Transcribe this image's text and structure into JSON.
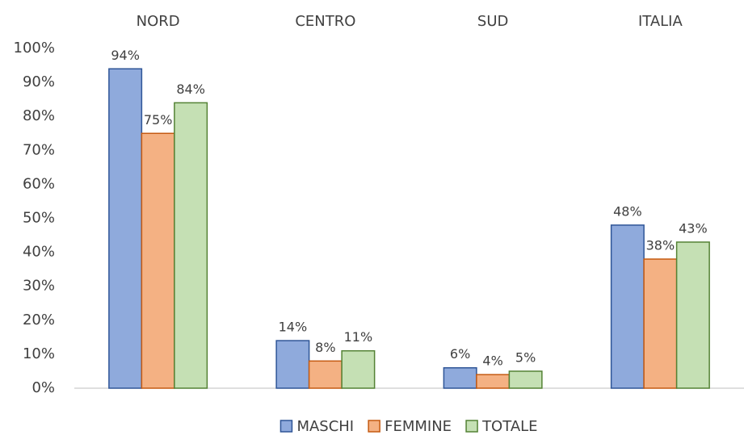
{
  "chart_data": {
    "type": "bar",
    "categories": [
      "NORD",
      "CENTRO",
      "SUD",
      "ITALIA"
    ],
    "series": [
      {
        "name": "MASCHI",
        "color": "#8faadc",
        "edge": "#2f5597",
        "values": [
          94,
          14,
          6,
          48
        ],
        "value_labels": [
          "94%",
          "14%",
          "6%",
          "48%"
        ]
      },
      {
        "name": "FEMMINE",
        "color": "#f4b183",
        "edge": "#c55a11",
        "values": [
          75,
          8,
          4,
          38
        ],
        "value_labels": [
          "75%",
          "8%",
          "4%",
          "38%"
        ]
      },
      {
        "name": "TOTALE",
        "color": "#c5e0b4",
        "edge": "#548235",
        "values": [
          84,
          11,
          5,
          43
        ],
        "value_labels": [
          "84%",
          "11%",
          "5%",
          "43%"
        ]
      }
    ],
    "ylim": [
      0,
      100
    ],
    "yticks": [
      {
        "value": 0,
        "label": "0%"
      },
      {
        "value": 10,
        "label": "10%"
      },
      {
        "value": 20,
        "label": "20%"
      },
      {
        "value": 30,
        "label": "30%"
      },
      {
        "value": 40,
        "label": "40%"
      },
      {
        "value": 50,
        "label": "50%"
      },
      {
        "value": 60,
        "label": "60%"
      },
      {
        "value": 70,
        "label": "70%"
      },
      {
        "value": 80,
        "label": "80%"
      },
      {
        "value": 90,
        "label": "90%"
      },
      {
        "value": 100,
        "label": "100%"
      }
    ],
    "grid": false,
    "legend": "bottom"
  }
}
